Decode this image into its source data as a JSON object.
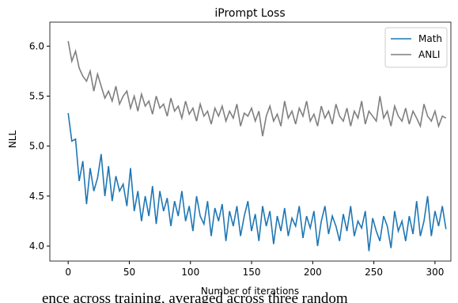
{
  "chart_data": {
    "type": "line",
    "title": "iPrompt Loss",
    "x_label": "Number of iterations",
    "y_label": "NLL",
    "caption": "ence across training, averaged across three random",
    "x": [
      0,
      3,
      6,
      9,
      12,
      15,
      18,
      21,
      24,
      27,
      30,
      33,
      36,
      39,
      42,
      45,
      48,
      51,
      54,
      57,
      60,
      63,
      66,
      69,
      72,
      75,
      78,
      81,
      84,
      87,
      90,
      93,
      96,
      99,
      102,
      105,
      108,
      111,
      114,
      117,
      120,
      123,
      126,
      129,
      132,
      135,
      138,
      141,
      144,
      147,
      150,
      153,
      156,
      159,
      162,
      165,
      168,
      171,
      174,
      177,
      180,
      183,
      186,
      189,
      192,
      195,
      198,
      201,
      204,
      207,
      210,
      213,
      216,
      219,
      222,
      225,
      228,
      231,
      234,
      237,
      240,
      243,
      246,
      249,
      252,
      255,
      258,
      261,
      264,
      267,
      270,
      273,
      276,
      279,
      282,
      285,
      288,
      291,
      294,
      297,
      300,
      303,
      306,
      309
    ],
    "series": [
      {
        "name": "Math",
        "color": "#1f77b4",
        "values": [
          5.33,
          5.05,
          5.07,
          4.65,
          4.85,
          4.42,
          4.78,
          4.55,
          4.68,
          4.92,
          4.5,
          4.8,
          4.45,
          4.7,
          4.55,
          4.62,
          4.4,
          4.78,
          4.35,
          4.55,
          4.25,
          4.5,
          4.3,
          4.6,
          4.22,
          4.55,
          4.35,
          4.48,
          4.2,
          4.45,
          4.3,
          4.55,
          4.25,
          4.4,
          4.15,
          4.5,
          4.3,
          4.22,
          4.45,
          4.1,
          4.38,
          4.25,
          4.42,
          4.05,
          4.35,
          4.2,
          4.4,
          4.1,
          4.3,
          4.45,
          4.15,
          4.32,
          4.05,
          4.4,
          4.2,
          4.35,
          4.02,
          4.3,
          4.15,
          4.38,
          4.1,
          4.28,
          4.2,
          4.4,
          4.08,
          4.3,
          4.18,
          4.35,
          4.0,
          4.25,
          4.4,
          4.12,
          4.3,
          4.2,
          4.05,
          4.32,
          4.15,
          4.4,
          4.1,
          4.25,
          4.18,
          4.35,
          3.95,
          4.28,
          4.15,
          4.05,
          4.3,
          4.2,
          3.98,
          4.35,
          4.15,
          4.25,
          4.05,
          4.3,
          4.12,
          4.45,
          4.1,
          4.25,
          4.5,
          4.1,
          4.35,
          4.2,
          4.4,
          4.17
        ]
      },
      {
        "name": "ANLI",
        "color": "#7f7f7f",
        "values": [
          6.05,
          5.85,
          5.95,
          5.78,
          5.7,
          5.65,
          5.75,
          5.55,
          5.72,
          5.6,
          5.48,
          5.55,
          5.45,
          5.6,
          5.42,
          5.5,
          5.55,
          5.38,
          5.5,
          5.35,
          5.52,
          5.4,
          5.45,
          5.32,
          5.5,
          5.38,
          5.42,
          5.3,
          5.48,
          5.35,
          5.4,
          5.28,
          5.45,
          5.32,
          5.38,
          5.25,
          5.42,
          5.3,
          5.35,
          5.22,
          5.38,
          5.3,
          5.4,
          5.25,
          5.35,
          5.28,
          5.42,
          5.2,
          5.33,
          5.3,
          5.38,
          5.25,
          5.35,
          5.1,
          5.3,
          5.4,
          5.25,
          5.32,
          5.2,
          5.45,
          5.28,
          5.35,
          5.22,
          5.38,
          5.3,
          5.45,
          5.25,
          5.32,
          5.2,
          5.4,
          5.28,
          5.35,
          5.22,
          5.42,
          5.3,
          5.25,
          5.38,
          5.2,
          5.35,
          5.28,
          5.45,
          5.22,
          5.35,
          5.3,
          5.25,
          5.5,
          5.28,
          5.35,
          5.2,
          5.4,
          5.3,
          5.25,
          5.38,
          5.22,
          5.35,
          5.28,
          5.2,
          5.42,
          5.3,
          5.25,
          5.35,
          5.2,
          5.3,
          5.28
        ]
      }
    ],
    "xlim": [
      -15,
      313
    ],
    "ylim": [
      3.85,
      6.24
    ],
    "xticks": [
      0,
      50,
      100,
      150,
      200,
      250,
      300
    ],
    "yticks": [
      {
        "value": 4,
        "label": "4.0"
      },
      4.5,
      {
        "value": 5,
        "label": "5.0"
      },
      5.5,
      {
        "value": 6,
        "label": "6.0"
      }
    ],
    "legend": "upper right"
  }
}
